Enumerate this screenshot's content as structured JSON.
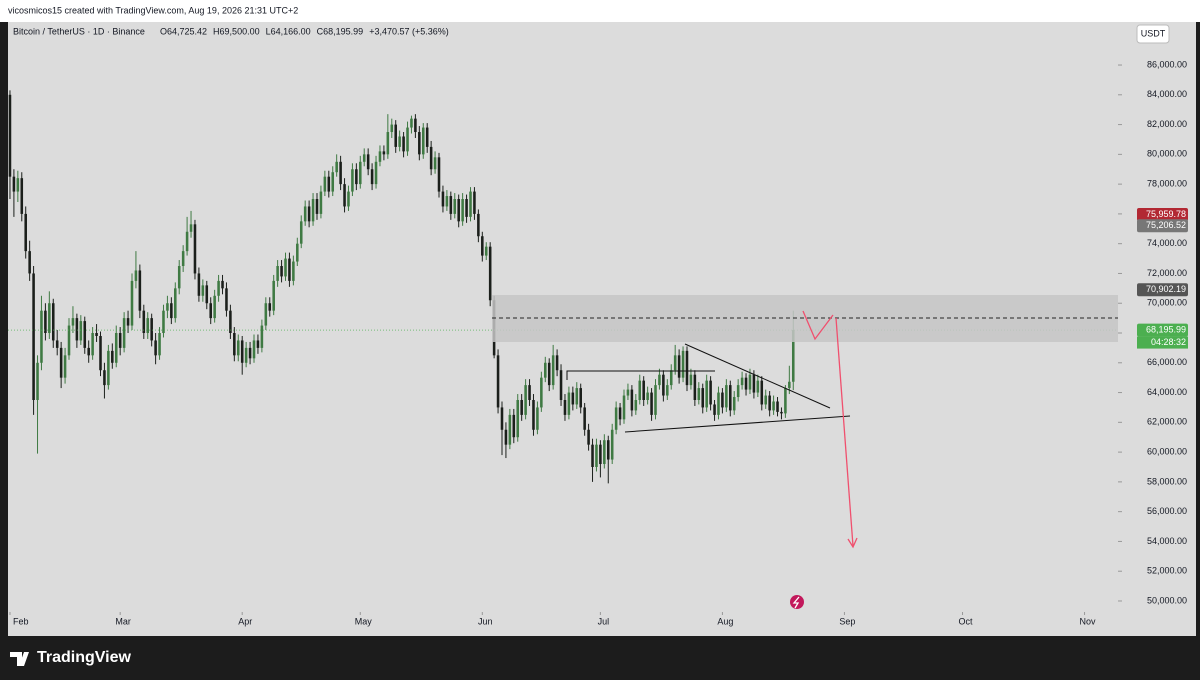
{
  "top_bar": "vicosmicos15 created with TradingView.com, Aug 19, 2026 21:31 UTC+2",
  "chart_data": {
    "type": "candlestick",
    "symbol": "Bitcoin / TetherUS · 1D · Binance",
    "ohlc_labels": [
      "O64,725.42",
      "H69,500.00",
      "L64,166.00",
      "C68,195.99"
    ],
    "change": "+3,470.57 (+5.36%)",
    "currency": "USDT",
    "up_color": "#3f7a43",
    "down_color": "#1b1f1b",
    "candles": [
      [
        84000,
        84300,
        77000,
        78500
      ],
      [
        78500,
        79000,
        75800,
        77500
      ],
      [
        77500,
        78900,
        76800,
        78400
      ],
      [
        78400,
        78800,
        75500,
        76000
      ],
      [
        76000,
        76500,
        73000,
        73500
      ],
      [
        73500,
        74200,
        71500,
        72000
      ],
      [
        72000,
        72500,
        62500,
        63500
      ],
      [
        63500,
        66500,
        59900,
        66000
      ],
      [
        66000,
        70500,
        65500,
        69500
      ],
      [
        69500,
        70000,
        67500,
        68000
      ],
      [
        68000,
        70800,
        67600,
        70000
      ],
      [
        70000,
        70300,
        67000,
        67500
      ],
      [
        67500,
        68200,
        66500,
        67000
      ],
      [
        67000,
        67400,
        64300,
        65000
      ],
      [
        65000,
        67000,
        64600,
        66500
      ],
      [
        66500,
        69000,
        66200,
        68500
      ],
      [
        68500,
        69800,
        68000,
        69000
      ],
      [
        69000,
        69300,
        67000,
        67500
      ],
      [
        67500,
        69200,
        67200,
        68800
      ],
      [
        68800,
        69100,
        66600,
        67000
      ],
      [
        67000,
        67500,
        66000,
        66500
      ],
      [
        66500,
        68400,
        66200,
        68000
      ],
      [
        68000,
        68600,
        67400,
        67800
      ],
      [
        67800,
        68100,
        65100,
        65500
      ],
      [
        65500,
        66000,
        63600,
        64500
      ],
      [
        64500,
        67200,
        64200,
        66800
      ],
      [
        66800,
        67300,
        65600,
        66000
      ],
      [
        66000,
        68500,
        65700,
        68000
      ],
      [
        68000,
        68400,
        66500,
        67000
      ],
      [
        67000,
        69400,
        66700,
        69000
      ],
      [
        69000,
        69500,
        68000,
        68500
      ],
      [
        68500,
        72000,
        68200,
        71500
      ],
      [
        71500,
        73500,
        71000,
        72200
      ],
      [
        72200,
        72600,
        69000,
        69500
      ],
      [
        69500,
        69900,
        67600,
        68000
      ],
      [
        68000,
        69400,
        67600,
        69000
      ],
      [
        69000,
        69300,
        67100,
        67500
      ],
      [
        67500,
        68000,
        65900,
        66500
      ],
      [
        66500,
        68400,
        66200,
        68000
      ],
      [
        68000,
        69900,
        67700,
        69500
      ],
      [
        69500,
        70500,
        69000,
        70000
      ],
      [
        70000,
        70400,
        68600,
        69000
      ],
      [
        69000,
        71400,
        68700,
        71000
      ],
      [
        71000,
        72900,
        70600,
        72500
      ],
      [
        72500,
        73900,
        72100,
        73500
      ],
      [
        73500,
        75800,
        73200,
        74800
      ],
      [
        74800,
        76200,
        74400,
        75300
      ],
      [
        75300,
        75600,
        71600,
        72000
      ],
      [
        72000,
        72400,
        70100,
        70500
      ],
      [
        70500,
        71600,
        70100,
        71200
      ],
      [
        71200,
        71500,
        69600,
        70000
      ],
      [
        70000,
        70400,
        68600,
        69000
      ],
      [
        69000,
        70900,
        68700,
        70500
      ],
      [
        70500,
        71900,
        70100,
        71500
      ],
      [
        71500,
        71900,
        70600,
        71000
      ],
      [
        71000,
        71400,
        69100,
        69500
      ],
      [
        69500,
        69900,
        67600,
        68000
      ],
      [
        68000,
        68400,
        66100,
        66500
      ],
      [
        66500,
        67900,
        66100,
        67500
      ],
      [
        67500,
        67800,
        65200,
        66000
      ],
      [
        66000,
        67400,
        65700,
        67000
      ],
      [
        67000,
        67400,
        65900,
        66300
      ],
      [
        66300,
        67900,
        66000,
        67500
      ],
      [
        67500,
        67900,
        66600,
        67000
      ],
      [
        67000,
        68900,
        66700,
        68500
      ],
      [
        68500,
        70400,
        68200,
        70000
      ],
      [
        70000,
        70400,
        69100,
        69500
      ],
      [
        69500,
        71900,
        69200,
        71500
      ],
      [
        71500,
        72900,
        71100,
        72500
      ],
      [
        72500,
        72900,
        71400,
        71800
      ],
      [
        71800,
        73400,
        71500,
        73000
      ],
      [
        73000,
        73400,
        71100,
        71500
      ],
      [
        71500,
        73200,
        71200,
        72800
      ],
      [
        72800,
        74400,
        72500,
        74000
      ],
      [
        74000,
        75900,
        73700,
        75500
      ],
      [
        75500,
        76900,
        75200,
        76500
      ],
      [
        76500,
        76900,
        75100,
        75500
      ],
      [
        75500,
        77400,
        75200,
        77000
      ],
      [
        77000,
        77400,
        75600,
        76000
      ],
      [
        76000,
        77900,
        75700,
        77500
      ],
      [
        77500,
        78900,
        77200,
        78500
      ],
      [
        78500,
        78900,
        77100,
        77500
      ],
      [
        77500,
        79200,
        77200,
        78800
      ],
      [
        78800,
        80000,
        78500,
        79500
      ],
      [
        79500,
        79900,
        77600,
        78000
      ],
      [
        78000,
        78400,
        76100,
        76500
      ],
      [
        76500,
        77900,
        76200,
        77500
      ],
      [
        77500,
        79400,
        77200,
        79000
      ],
      [
        79000,
        79400,
        77600,
        78000
      ],
      [
        78000,
        79900,
        77700,
        79500
      ],
      [
        79500,
        80400,
        79200,
        80000
      ],
      [
        80000,
        80400,
        78600,
        79000
      ],
      [
        79000,
        79400,
        77600,
        78000
      ],
      [
        78000,
        79900,
        77700,
        79500
      ],
      [
        79500,
        80600,
        79200,
        80200
      ],
      [
        80200,
        80600,
        79600,
        80000
      ],
      [
        80000,
        82700,
        79700,
        81500
      ],
      [
        81500,
        82400,
        81100,
        82000
      ],
      [
        82000,
        82300,
        80100,
        80500
      ],
      [
        80500,
        81600,
        80200,
        81200
      ],
      [
        81200,
        81500,
        79800,
        80200
      ],
      [
        80200,
        82200,
        79900,
        81800
      ],
      [
        81800,
        82600,
        81400,
        82400
      ],
      [
        82400,
        82700,
        81100,
        81500
      ],
      [
        81500,
        81900,
        79600,
        80000
      ],
      [
        80000,
        82100,
        79700,
        81800
      ],
      [
        81800,
        82100,
        80100,
        80500
      ],
      [
        80500,
        80900,
        78600,
        79000
      ],
      [
        79000,
        80200,
        78700,
        79800
      ],
      [
        79800,
        80100,
        77100,
        77500
      ],
      [
        77500,
        77900,
        76100,
        76500
      ],
      [
        76500,
        77600,
        76200,
        77200
      ],
      [
        77200,
        77500,
        75600,
        76000
      ],
      [
        76000,
        77400,
        75700,
        77000
      ],
      [
        77000,
        77300,
        75100,
        75500
      ],
      [
        75500,
        77400,
        75200,
        77000
      ],
      [
        77000,
        77300,
        75400,
        75800
      ],
      [
        75800,
        77800,
        75500,
        77500
      ],
      [
        77500,
        77800,
        75600,
        76000
      ],
      [
        76000,
        76300,
        74100,
        74500
      ],
      [
        74500,
        74800,
        72800,
        73200
      ],
      [
        73200,
        74100,
        72900,
        73800
      ],
      [
        73800,
        74100,
        69800,
        70200
      ],
      [
        70200,
        70500,
        66300,
        66500
      ],
      [
        66500,
        66900,
        62600,
        63000
      ],
      [
        63000,
        63400,
        59800,
        61500
      ],
      [
        61500,
        62000,
        59600,
        60500
      ],
      [
        60500,
        62900,
        60200,
        62500
      ],
      [
        62500,
        62900,
        60600,
        61000
      ],
      [
        61000,
        63900,
        60700,
        63500
      ],
      [
        63500,
        63900,
        62100,
        62500
      ],
      [
        62500,
        64900,
        62200,
        64500
      ],
      [
        64500,
        64900,
        63100,
        63500
      ],
      [
        63500,
        63900,
        61100,
        61500
      ],
      [
        61500,
        63400,
        61200,
        63000
      ],
      [
        63000,
        65400,
        62700,
        65000
      ],
      [
        65000,
        66400,
        64700,
        66000
      ],
      [
        66000,
        66300,
        64100,
        64500
      ],
      [
        64500,
        67200,
        64200,
        66500
      ],
      [
        66500,
        66900,
        65100,
        65500
      ],
      [
        65500,
        65900,
        63100,
        63500
      ],
      [
        63500,
        63900,
        62100,
        62500
      ],
      [
        62500,
        64400,
        62200,
        64000
      ],
      [
        64000,
        64400,
        62800,
        63200
      ],
      [
        63200,
        64700,
        62900,
        64300
      ],
      [
        64300,
        64600,
        62600,
        63000
      ],
      [
        63000,
        63300,
        61100,
        61500
      ],
      [
        61500,
        61900,
        60100,
        60500
      ],
      [
        60500,
        60900,
        58000,
        59000
      ],
      [
        59000,
        60900,
        58700,
        60500
      ],
      [
        60500,
        60800,
        58300,
        59200
      ],
      [
        59200,
        61200,
        58900,
        60800
      ],
      [
        60800,
        61100,
        57900,
        59500
      ],
      [
        59500,
        61900,
        59200,
        61500
      ],
      [
        61500,
        63400,
        61200,
        63000
      ],
      [
        63000,
        63300,
        61800,
        62200
      ],
      [
        62200,
        64200,
        61900,
        63800
      ],
      [
        63800,
        64600,
        63500,
        64200
      ],
      [
        64200,
        64500,
        62400,
        62800
      ],
      [
        62800,
        63900,
        62500,
        63500
      ],
      [
        63500,
        65200,
        63200,
        64800
      ],
      [
        64800,
        65100,
        63100,
        63500
      ],
      [
        63500,
        64400,
        63200,
        64000
      ],
      [
        64000,
        64300,
        62100,
        62500
      ],
      [
        62500,
        64900,
        62200,
        64500
      ],
      [
        64500,
        65600,
        64200,
        65200
      ],
      [
        65200,
        65500,
        63400,
        63800
      ],
      [
        63800,
        64900,
        63500,
        64500
      ],
      [
        64500,
        65900,
        64200,
        65500
      ],
      [
        65500,
        67200,
        65200,
        66500
      ],
      [
        66500,
        66900,
        64600,
        65000
      ],
      [
        65000,
        67100,
        64700,
        66800
      ],
      [
        66800,
        67100,
        64100,
        64500
      ],
      [
        64500,
        65600,
        64200,
        65200
      ],
      [
        65200,
        65500,
        63100,
        63500
      ],
      [
        63500,
        64700,
        63200,
        64300
      ],
      [
        64300,
        64600,
        62600,
        63000
      ],
      [
        63000,
        65200,
        62700,
        64800
      ],
      [
        64800,
        65100,
        62800,
        63200
      ],
      [
        63200,
        63500,
        62100,
        62500
      ],
      [
        62500,
        64400,
        62200,
        64000
      ],
      [
        64000,
        64300,
        62600,
        63000
      ],
      [
        63000,
        64900,
        62700,
        64500
      ],
      [
        64500,
        64800,
        62400,
        62800
      ],
      [
        62800,
        64100,
        62500,
        63700
      ],
      [
        63700,
        64900,
        63400,
        64500
      ],
      [
        64500,
        65400,
        64200,
        65000
      ],
      [
        65000,
        65300,
        63800,
        64200
      ],
      [
        64200,
        65600,
        63900,
        65200
      ],
      [
        65200,
        65500,
        63600,
        64000
      ],
      [
        64000,
        65200,
        63700,
        64800
      ],
      [
        64800,
        65100,
        62800,
        63200
      ],
      [
        63200,
        64200,
        62900,
        63800
      ],
      [
        63800,
        64100,
        62400,
        62800
      ],
      [
        62800,
        63800,
        62500,
        63400
      ],
      [
        63400,
        63700,
        62400,
        62700
      ],
      [
        62700,
        63000,
        62200,
        62600
      ],
      [
        62600,
        64500,
        62300,
        64300
      ],
      [
        64300,
        65800,
        63900,
        64725.42
      ],
      [
        64725.42,
        69500,
        64166,
        68195.99
      ]
    ],
    "xlim": [
      -0.5,
      281.5
    ],
    "xticks": [
      {
        "value": 0,
        "label": "Feb"
      },
      {
        "value": 28,
        "label": "Mar"
      },
      {
        "value": 59,
        "label": "Apr"
      },
      {
        "value": 89,
        "label": "May"
      },
      {
        "value": 120,
        "label": "Jun"
      },
      {
        "value": 150,
        "label": "Jul"
      },
      {
        "value": 181,
        "label": "Aug"
      },
      {
        "value": 212,
        "label": "Sep"
      },
      {
        "value": 242,
        "label": "Oct"
      },
      {
        "value": 273,
        "label": "Nov"
      }
    ],
    "ylim": [
      49260,
      88890
    ],
    "yticks": [
      {
        "value": 50000,
        "label": "50,000.00"
      },
      {
        "value": 52000,
        "label": "52,000.00"
      },
      {
        "value": 54000,
        "label": "54,000.00"
      },
      {
        "value": 56000,
        "label": "56,000.00"
      },
      {
        "value": 58000,
        "label": "58,000.00"
      },
      {
        "value": 60000,
        "label": "60,000.00"
      },
      {
        "value": 62000,
        "label": "62,000.00"
      },
      {
        "value": 64000,
        "label": "64,000.00"
      },
      {
        "value": 66000,
        "label": "66,000.00"
      },
      {
        "value": 68000,
        "label": "68,000.00"
      },
      {
        "value": 70000,
        "label": "70,000.00"
      },
      {
        "value": 72000,
        "label": "72,000.00"
      },
      {
        "value": 74000,
        "label": "74,000.00"
      },
      {
        "value": 76000,
        "label": "76,000.00"
      },
      {
        "value": 78000,
        "label": "78,000.00"
      },
      {
        "value": 80000,
        "label": "80,000.00"
      },
      {
        "value": 82000,
        "label": "82,000.00"
      },
      {
        "value": 84000,
        "label": "84,000.00"
      },
      {
        "value": 86000,
        "label": "86,000.00"
      }
    ],
    "price_labels": [
      {
        "value": 75959.78,
        "label": "75,959.78",
        "color": "#b22833"
      },
      {
        "value": 75206.52,
        "label": "75,206.52",
        "color": "#777777"
      },
      {
        "value": 70902.19,
        "label": "70,902.19",
        "color": "#555555"
      },
      {
        "value": 68195.99,
        "label": "68,195.99",
        "color": "#4caf50"
      }
    ],
    "countdown": "04:28:32"
  },
  "footer": "TradingView"
}
